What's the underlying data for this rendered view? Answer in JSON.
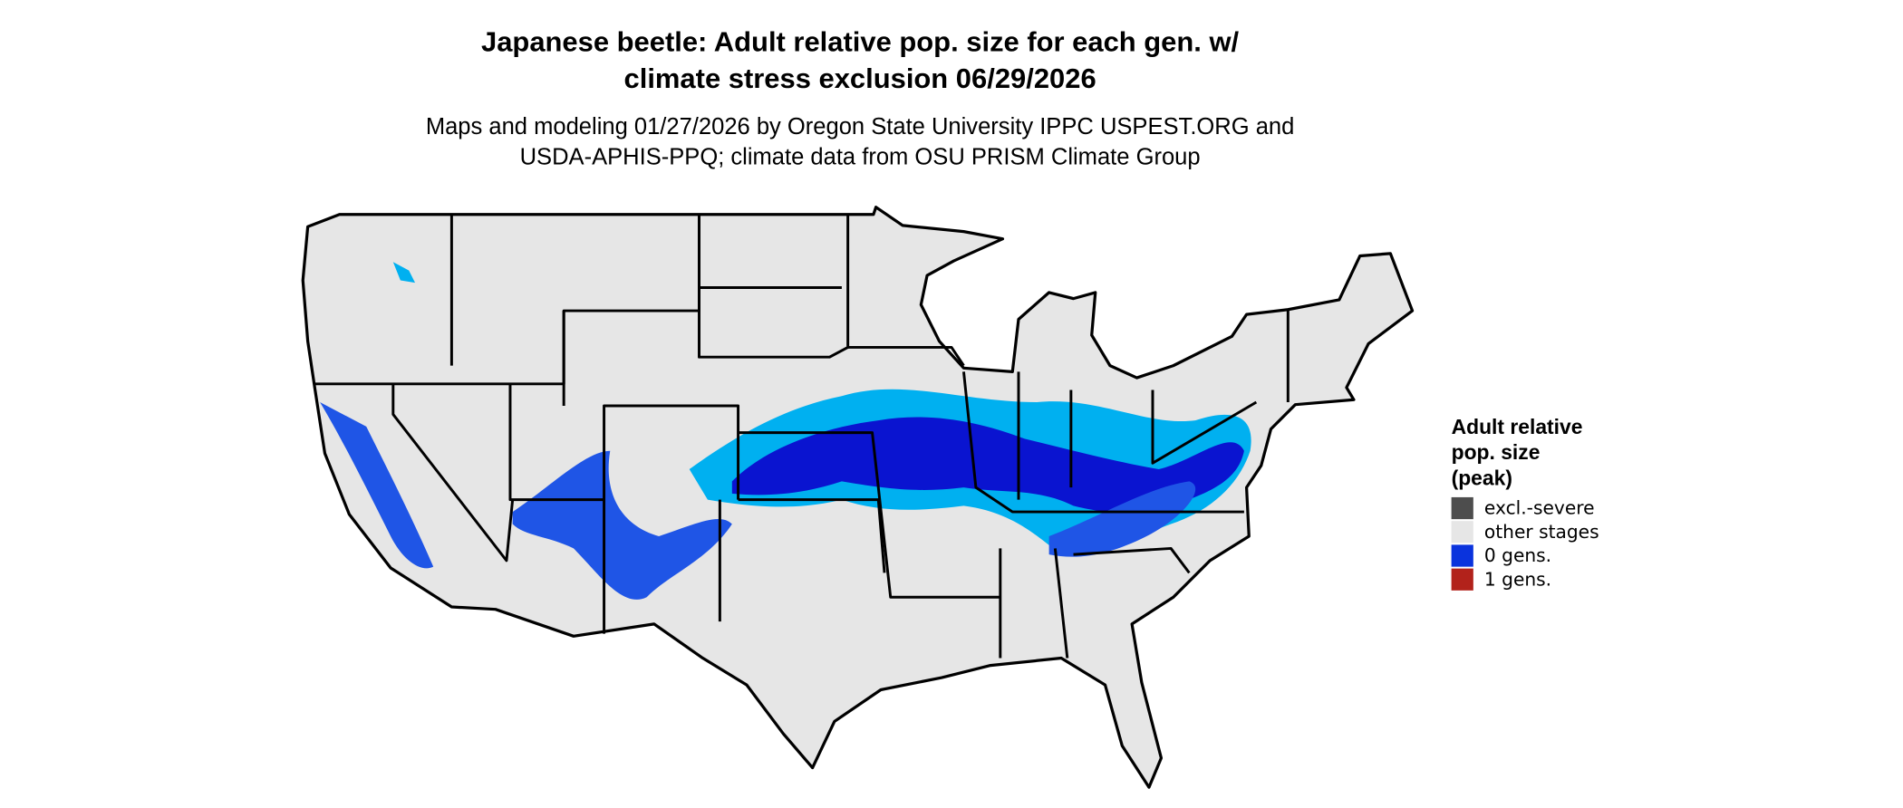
{
  "header": {
    "title": [
      "Japanese beetle: Adult relative pop. size for each gen. w/",
      "climate stress exclusion 06/29/2026"
    ],
    "subtitle": [
      "Maps and modeling 01/27/2026 by Oregon State University IPPC USPEST.ORG and",
      "USDA-APHIS-PPQ; climate data from OSU PRISM Climate Group"
    ]
  },
  "legend": {
    "title": [
      "Adult relative",
      "pop. size",
      "(peak)"
    ],
    "items": [
      {
        "label": "excl.-severe",
        "color": "#4d4d4d"
      },
      {
        "label": "other stages",
        "color": "#e6e6e6"
      },
      {
        "label": "0 gens.",
        "color": "#0a33dd"
      },
      {
        "label": "1 gens.",
        "color": "#b2221b"
      }
    ]
  }
}
